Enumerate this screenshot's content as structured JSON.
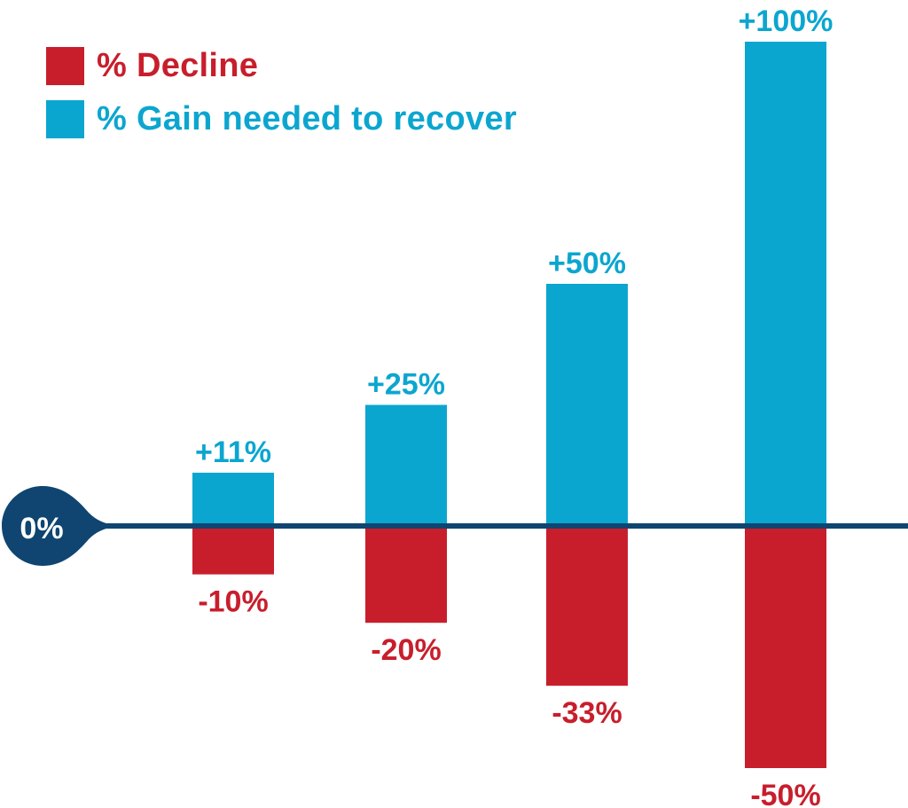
{
  "chart_data": {
    "type": "bar",
    "categories": [
      "",
      "",
      "",
      ""
    ],
    "series": [
      {
        "name": "% Decline",
        "values": [
          -10,
          -20,
          -33,
          -50
        ],
        "labels": [
          "-10%",
          "-20%",
          "-33%",
          "-50%"
        ]
      },
      {
        "name": "% Gain needed to recover",
        "values": [
          11,
          25,
          50,
          100
        ],
        "labels": [
          "+11%",
          "+25%",
          "+50%",
          "+100%"
        ]
      }
    ],
    "zero_label": "0%",
    "ylim": [
      -50,
      100
    ],
    "grid": false,
    "legend_position": "top-left"
  },
  "legend": {
    "decline_label": "% Decline",
    "gain_label": "% Gain needed to recover"
  },
  "colors": {
    "decline": "#C81E2C",
    "gain": "#0BA6D0",
    "axis": "#0F4570"
  }
}
